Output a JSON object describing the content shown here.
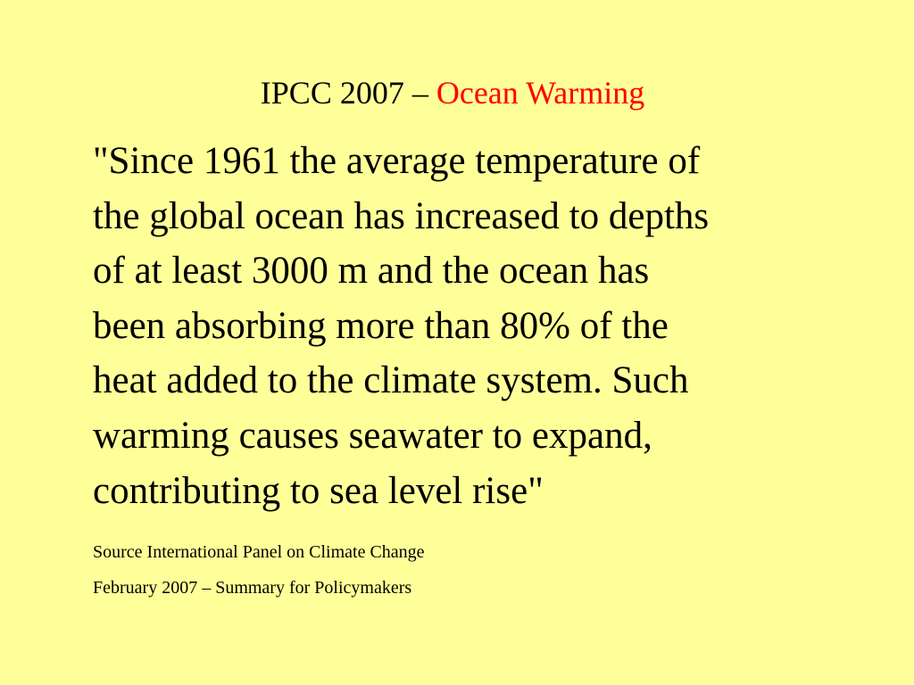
{
  "slide": {
    "title": {
      "prefix": "IPCC 2007 – ",
      "accent": "Ocean Warming"
    },
    "quote_lines": [
      "\"Since 1961 the average temperature of",
      "the global ocean has increased to depths",
      "of at least 3000 m and the ocean has",
      "been absorbing more than 80% of the",
      "heat added to the climate system. Such",
      "warming causes seawater to expand,",
      "contributing to sea level rise\""
    ],
    "source": {
      "line1": "Source International Panel on Climate Change",
      "line2": "February  2007 – Summary for Policymakers"
    }
  },
  "colors": {
    "background": "#FFFF99",
    "text": "#000000",
    "title_accent": "#FF0000"
  }
}
